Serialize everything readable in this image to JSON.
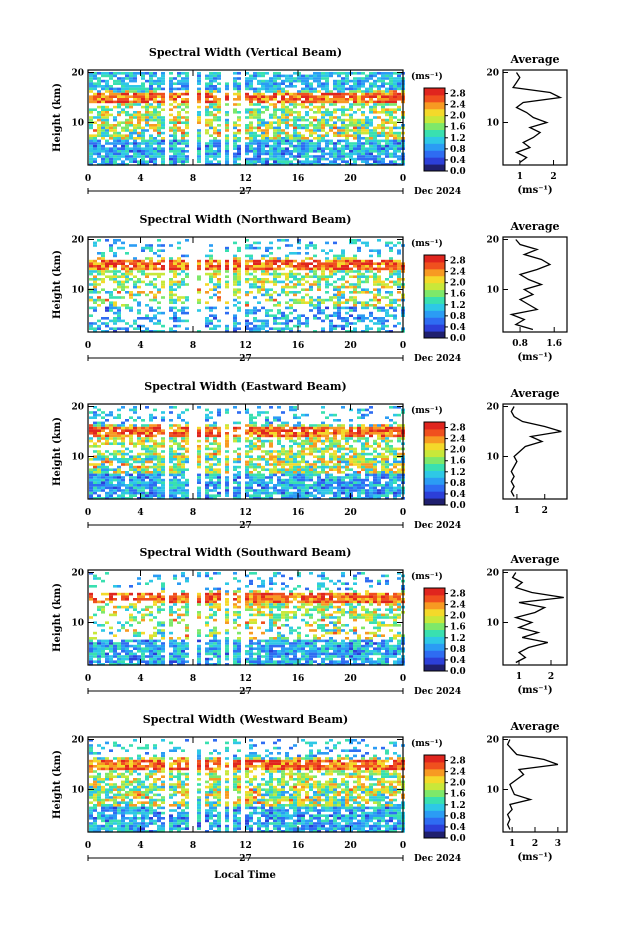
{
  "page": {
    "xlabel": "Local Time"
  },
  "colors": [
    "#1f1f6e",
    "#2c3fd8",
    "#2e6cf2",
    "#2b9cf4",
    "#2ec8e6",
    "#39e0b0",
    "#7ee86a",
    "#c8e83a",
    "#f4d92a",
    "#f79a22",
    "#f0501e",
    "#e0251e"
  ],
  "chart_data": [
    {
      "type": "heatmap",
      "title": "Spectral Width (Vertical Beam)",
      "ylabel": "Height (km)",
      "x_ticks": [
        "0",
        "4",
        "8",
        "12",
        "16",
        "20",
        "0"
      ],
      "y_ticks": [
        "20",
        "10"
      ],
      "xlim": [
        0,
        24
      ],
      "ylim": [
        1.5,
        20.5
      ],
      "date_day": "27",
      "date_label": "Dec 2024",
      "colorbar": {
        "unit": "(ms⁻¹)",
        "ticks": [
          "2.8",
          "2.4",
          "2.0",
          "1.6",
          "1.2",
          "0.8",
          "0.4",
          "0.0"
        ],
        "range": [
          0,
          3.0
        ]
      },
      "average": {
        "title": "Average",
        "xlabel": "(ms⁻¹)",
        "x_ticks": [
          "1",
          "2"
        ],
        "xlim": [
          0.5,
          2.4
        ],
        "profile": [
          [
            2,
            1.0
          ],
          [
            3,
            1.2
          ],
          [
            4,
            0.9
          ],
          [
            5,
            1.3
          ],
          [
            6,
            1.1
          ],
          [
            7,
            1.4
          ],
          [
            8,
            1.6
          ],
          [
            9,
            1.3
          ],
          [
            10,
            1.8
          ],
          [
            11,
            1.4
          ],
          [
            12,
            1.2
          ],
          [
            13,
            0.9
          ],
          [
            14,
            1.1
          ],
          [
            15,
            2.2
          ],
          [
            16,
            1.9
          ],
          [
            17,
            0.8
          ],
          [
            18,
            0.9
          ],
          [
            19,
            1.0
          ],
          [
            20,
            0.9
          ]
        ]
      },
      "gap_hours": [
        [
          5,
          5.7
        ],
        [
          5.9,
          6.5
        ],
        [
          6.6,
          7.1
        ],
        [
          7.2,
          7.6
        ],
        [
          7.8,
          8.0
        ],
        [
          8.2,
          8.6
        ],
        [
          8.8,
          9.0
        ],
        [
          9.2,
          9.6
        ],
        [
          9.8,
          10.0
        ],
        [
          10.3,
          10.6
        ],
        [
          10.8,
          11.1
        ],
        [
          11.3,
          11.6
        ],
        [
          11.8,
          12.0
        ]
      ]
    },
    {
      "type": "heatmap",
      "title": "Spectral Width (Northward Beam)",
      "ylabel": "Height (km)",
      "x_ticks": [
        "0",
        "4",
        "8",
        "12",
        "16",
        "20",
        "0"
      ],
      "y_ticks": [
        "20",
        "10"
      ],
      "xlim": [
        0,
        24
      ],
      "ylim": [
        1.5,
        20.5
      ],
      "date_day": "27",
      "date_label": "Dec 2024",
      "colorbar": {
        "unit": "(ms⁻¹)",
        "ticks": [
          "2.8",
          "2.4",
          "2.0",
          "1.6",
          "1.2",
          "0.8",
          "0.4",
          "0.0"
        ],
        "range": [
          0,
          3.0
        ]
      },
      "average": {
        "title": "Average",
        "xlabel": "(ms⁻¹)",
        "x_ticks": [
          "0.8",
          "1.6"
        ],
        "xlim": [
          0.4,
          1.9
        ],
        "profile": [
          [
            2,
            1.1
          ],
          [
            3,
            0.7
          ],
          [
            4,
            0.9
          ],
          [
            5,
            0.6
          ],
          [
            6,
            1.2
          ],
          [
            7,
            1.0
          ],
          [
            8,
            0.8
          ],
          [
            9,
            1.1
          ],
          [
            10,
            0.9
          ],
          [
            11,
            1.3
          ],
          [
            12,
            1.0
          ],
          [
            13,
            0.8
          ],
          [
            14,
            1.2
          ],
          [
            15,
            1.5
          ],
          [
            16,
            1.3
          ],
          [
            17,
            0.9
          ],
          [
            18,
            1.2
          ],
          [
            19,
            0.8
          ],
          [
            20,
            0.7
          ]
        ]
      },
      "gap_hours": [
        [
          5,
          5.7
        ],
        [
          5.9,
          6.5
        ],
        [
          6.6,
          7.1
        ],
        [
          7.2,
          7.6
        ],
        [
          7.8,
          8.0
        ],
        [
          8.2,
          8.6
        ],
        [
          8.8,
          9.0
        ],
        [
          9.2,
          9.6
        ],
        [
          9.8,
          10.0
        ],
        [
          10.3,
          10.6
        ],
        [
          10.8,
          11.1
        ],
        [
          11.3,
          11.6
        ],
        [
          11.8,
          12.0
        ]
      ]
    },
    {
      "type": "heatmap",
      "title": "Spectral Width (Eastward Beam)",
      "ylabel": "Height (km)",
      "x_ticks": [
        "0",
        "4",
        "8",
        "12",
        "16",
        "20",
        "0"
      ],
      "y_ticks": [
        "20",
        "10"
      ],
      "xlim": [
        0,
        24
      ],
      "ylim": [
        1.5,
        20.5
      ],
      "date_day": "27",
      "date_label": "Dec 2024",
      "colorbar": {
        "unit": "(ms⁻¹)",
        "ticks": [
          "2.8",
          "2.4",
          "2.0",
          "1.6",
          "1.2",
          "0.8",
          "0.4",
          "0.0"
        ],
        "range": [
          0,
          3.0
        ]
      },
      "average": {
        "title": "Average",
        "xlabel": "",
        "x_ticks": [
          "1",
          "2"
        ],
        "xlim": [
          0.5,
          2.8
        ],
        "profile": [
          [
            2,
            0.9
          ],
          [
            3,
            0.8
          ],
          [
            4,
            0.9
          ],
          [
            5,
            0.8
          ],
          [
            6,
            0.9
          ],
          [
            7,
            0.8
          ],
          [
            8,
            0.9
          ],
          [
            9,
            1.0
          ],
          [
            10,
            0.9
          ],
          [
            11,
            1.1
          ],
          [
            12,
            1.3
          ],
          [
            13,
            1.9
          ],
          [
            14,
            1.5
          ],
          [
            15,
            2.6
          ],
          [
            16,
            2.0
          ],
          [
            17,
            1.2
          ],
          [
            18,
            0.9
          ],
          [
            19,
            0.8
          ],
          [
            20,
            0.9
          ]
        ]
      },
      "gap_hours": [
        [
          5,
          5.7
        ],
        [
          5.9,
          6.5
        ],
        [
          6.6,
          7.1
        ],
        [
          7.2,
          7.6
        ],
        [
          7.8,
          8.0
        ],
        [
          8.2,
          8.6
        ],
        [
          8.8,
          9.0
        ],
        [
          9.2,
          9.6
        ],
        [
          9.8,
          10.0
        ],
        [
          10.3,
          10.6
        ],
        [
          10.8,
          11.1
        ],
        [
          11.3,
          11.6
        ],
        [
          11.8,
          12.0
        ]
      ]
    },
    {
      "type": "heatmap",
      "title": "Spectral Width (Southward Beam)",
      "ylabel": "Height (km)",
      "x_ticks": [
        "0",
        "4",
        "8",
        "12",
        "16",
        "20",
        "0"
      ],
      "y_ticks": [
        "20",
        "10"
      ],
      "xlim": [
        0,
        24
      ],
      "ylim": [
        1.5,
        20.5
      ],
      "date_day": "27",
      "date_label": "Dec 2024",
      "colorbar": {
        "unit": "(ms⁻¹)",
        "ticks": [
          "2.8",
          "2.4",
          "2.0",
          "1.6",
          "1.2",
          "0.8",
          "0.4",
          "0.0"
        ],
        "range": [
          0,
          3.0
        ]
      },
      "average": {
        "title": "Average",
        "xlabel": "(ms⁻¹)",
        "x_ticks": [
          "1",
          "2"
        ],
        "xlim": [
          0.5,
          2.5
        ],
        "profile": [
          [
            2,
            0.9
          ],
          [
            3,
            1.2
          ],
          [
            4,
            1.0
          ],
          [
            5,
            1.3
          ],
          [
            6,
            1.9
          ],
          [
            7,
            1.1
          ],
          [
            8,
            1.6
          ],
          [
            9,
            1.0
          ],
          [
            10,
            1.4
          ],
          [
            11,
            0.9
          ],
          [
            12,
            1.5
          ],
          [
            13,
            1.8
          ],
          [
            14,
            1.0
          ],
          [
            15,
            2.4
          ],
          [
            16,
            1.4
          ],
          [
            17,
            0.9
          ],
          [
            18,
            1.1
          ],
          [
            19,
            0.8
          ],
          [
            20,
            0.9
          ]
        ]
      },
      "gap_hours": [
        [
          5,
          5.7
        ],
        [
          5.9,
          6.5
        ],
        [
          6.6,
          7.1
        ],
        [
          7.2,
          7.6
        ],
        [
          7.8,
          8.0
        ],
        [
          8.2,
          8.6
        ],
        [
          8.8,
          9.0
        ],
        [
          9.2,
          9.6
        ],
        [
          9.8,
          10.0
        ],
        [
          10.3,
          10.6
        ],
        [
          10.8,
          11.1
        ],
        [
          11.3,
          11.6
        ],
        [
          11.8,
          12.0
        ]
      ]
    },
    {
      "type": "heatmap",
      "title": "Spectral Width (Westward Beam)",
      "ylabel": "Height (km)",
      "x_ticks": [
        "0",
        "4",
        "8",
        "12",
        "16",
        "20",
        "0"
      ],
      "y_ticks": [
        "20",
        "10"
      ],
      "xlim": [
        0,
        24
      ],
      "ylim": [
        1.5,
        20.5
      ],
      "date_day": "27",
      "date_label": "Dec 2024",
      "colorbar": {
        "unit": "(ms⁻¹)",
        "ticks": [
          "2.8",
          "2.4",
          "2.0",
          "1.6",
          "1.2",
          "0.8",
          "0.4",
          "0.0"
        ],
        "range": [
          0,
          3.0
        ]
      },
      "average": {
        "title": "Average",
        "xlabel": "(ms⁻¹)",
        "x_ticks": [
          "1",
          "2",
          "3"
        ],
        "xlim": [
          0.6,
          3.4
        ],
        "profile": [
          [
            2,
            0.9
          ],
          [
            3,
            0.8
          ],
          [
            4,
            0.9
          ],
          [
            5,
            0.8
          ],
          [
            6,
            1.0
          ],
          [
            7,
            0.9
          ],
          [
            8,
            1.8
          ],
          [
            9,
            1.1
          ],
          [
            10,
            1.0
          ],
          [
            11,
            0.9
          ],
          [
            12,
            1.2
          ],
          [
            13,
            1.5
          ],
          [
            14,
            1.3
          ],
          [
            15,
            3.0
          ],
          [
            16,
            2.4
          ],
          [
            17,
            1.2
          ],
          [
            18,
            1.0
          ],
          [
            19,
            0.8
          ],
          [
            20,
            0.9
          ]
        ]
      },
      "gap_hours": [
        [
          5,
          5.7
        ],
        [
          5.9,
          6.5
        ],
        [
          6.6,
          7.1
        ],
        [
          7.2,
          7.6
        ],
        [
          7.8,
          8.0
        ],
        [
          8.2,
          8.6
        ],
        [
          8.8,
          9.0
        ],
        [
          9.2,
          9.6
        ],
        [
          9.8,
          10.0
        ],
        [
          10.3,
          10.6
        ],
        [
          10.8,
          11.1
        ],
        [
          11.3,
          11.6
        ],
        [
          11.8,
          12.0
        ]
      ]
    }
  ]
}
